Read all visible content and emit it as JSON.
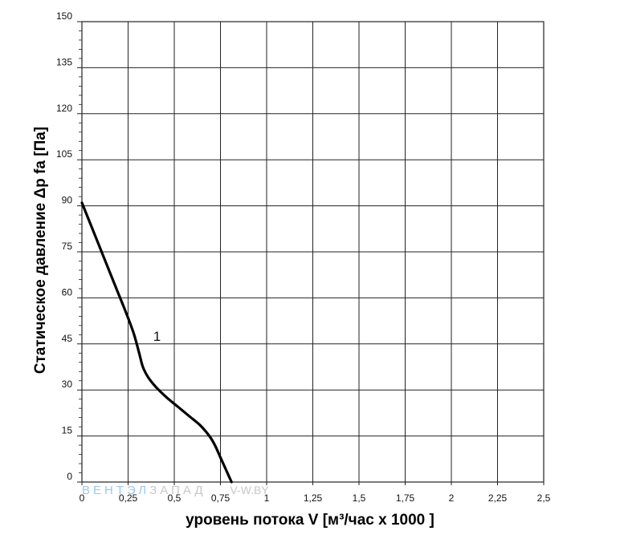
{
  "chart_data": {
    "type": "line",
    "xlabel": "уровень потока  V [м³/час x 1000 ]",
    "ylabel": "Статическое давление  Δp fa [Па]",
    "xlim": [
      0,
      2.5
    ],
    "ylim": [
      0,
      150
    ],
    "x_ticks": [
      0,
      0.25,
      0.5,
      0.75,
      1,
      1.25,
      1.5,
      1.75,
      2,
      2.25,
      2.5
    ],
    "x_tick_labels": [
      "0",
      "0,25",
      "0,5",
      "0,75",
      "1",
      "1,25",
      "1,5",
      "1,75",
      "2",
      "2,25",
      "2,5"
    ],
    "y_ticks": [
      0,
      15,
      30,
      45,
      60,
      75,
      90,
      105,
      120,
      135,
      150
    ],
    "y_tick_labels": [
      "0",
      "15",
      "30",
      "45",
      "60",
      "75",
      "90",
      "105",
      "120",
      "135",
      "150"
    ],
    "grid": true,
    "series": [
      {
        "name": "1",
        "color": "#000000",
        "x": [
          0.0,
          0.06,
          0.12,
          0.18,
          0.24,
          0.28,
          0.31,
          0.33,
          0.36,
          0.4,
          0.46,
          0.52,
          0.58,
          0.64,
          0.69,
          0.72,
          0.75,
          0.78,
          0.81
        ],
        "y": [
          91,
          82,
          73,
          64,
          55,
          48.5,
          42,
          37.5,
          34,
          31,
          27.5,
          24.5,
          21.5,
          18.5,
          15,
          12,
          8,
          4,
          0
        ]
      }
    ]
  },
  "watermark": {
    "part1": "ВЕНТЭЛ",
    "part2": "ЗАПАД",
    "part3": "V-W.BY"
  }
}
